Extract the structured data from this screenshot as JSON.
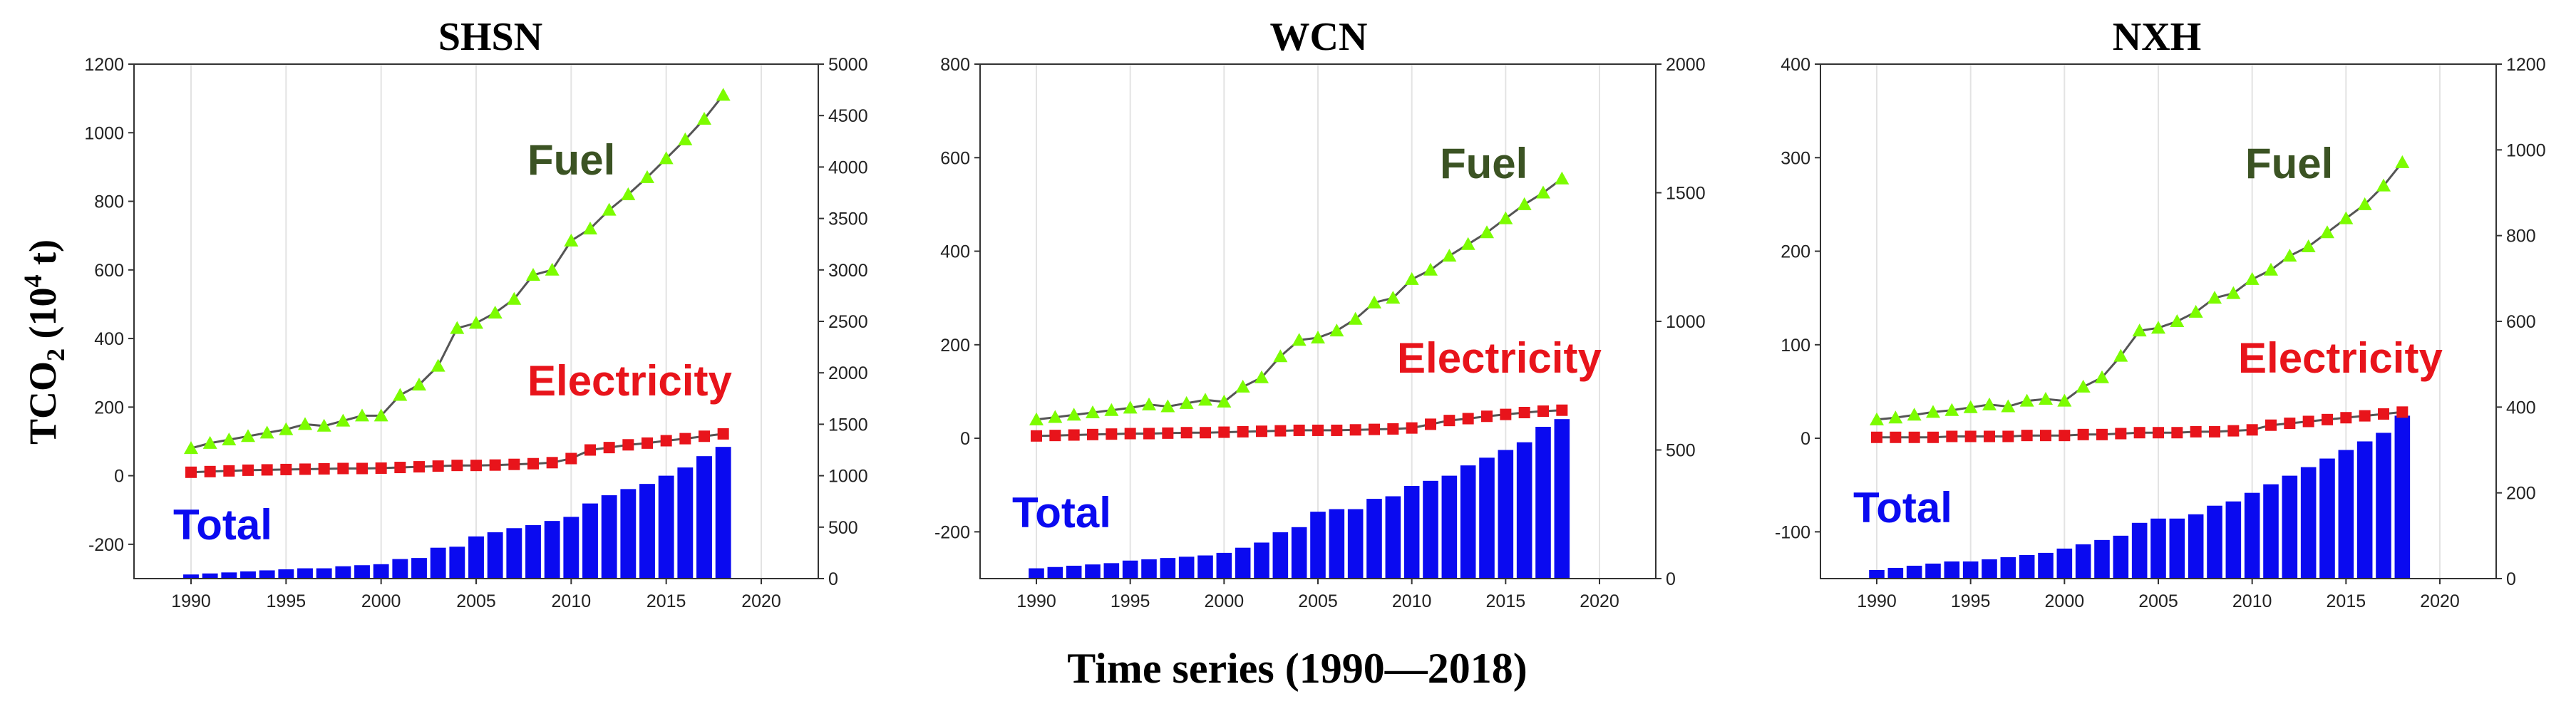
{
  "chart_data": [
    {
      "type": "bar+line",
      "title": "SHSN",
      "x": [
        1990,
        1991,
        1992,
        1993,
        1994,
        1995,
        1996,
        1997,
        1998,
        1999,
        2000,
        2001,
        2002,
        2003,
        2004,
        2005,
        2006,
        2007,
        2008,
        2009,
        2010,
        2011,
        2012,
        2013,
        2014,
        2015,
        2016,
        2017,
        2018
      ],
      "xlim": [
        1987,
        2023
      ],
      "xticks": [
        "1990",
        "1995",
        "2000",
        "2005",
        "2010",
        "2015",
        "2020"
      ],
      "ylim_left": [
        -300,
        1200
      ],
      "yticks_left": [
        "-200",
        "0",
        "200",
        "400",
        "600",
        "800",
        "1000",
        "1200"
      ],
      "ylim_right": [
        0,
        5000
      ],
      "yticks_right": [
        "0",
        "500",
        "1000",
        "1500",
        "2000",
        "2500",
        "3000",
        "3500",
        "4000",
        "4500",
        "5000"
      ],
      "series": [
        {
          "name": "Fuel",
          "axis": "left",
          "kind": "line",
          "marker": "triangle",
          "color": "#7CFC00",
          "values": [
            80,
            95,
            105,
            115,
            125,
            135,
            150,
            145,
            160,
            175,
            175,
            235,
            265,
            320,
            430,
            445,
            475,
            515,
            585,
            600,
            685,
            720,
            775,
            820,
            870,
            925,
            980,
            1040,
            1110
          ]
        },
        {
          "name": "Electricity",
          "axis": "left",
          "kind": "line",
          "marker": "square",
          "color": "#E8141B",
          "values": [
            10,
            12,
            14,
            16,
            17,
            18,
            19,
            20,
            21,
            21,
            22,
            24,
            26,
            28,
            30,
            30,
            31,
            33,
            35,
            38,
            50,
            75,
            82,
            90,
            95,
            102,
            108,
            115,
            122
          ]
        },
        {
          "name": "Total",
          "axis": "right",
          "kind": "bar",
          "color": "#0A0AF0",
          "values": [
            40,
            50,
            60,
            70,
            80,
            90,
            100,
            100,
            120,
            130,
            140,
            190,
            200,
            300,
            310,
            410,
            450,
            490,
            520,
            560,
            600,
            730,
            810,
            870,
            920,
            1000,
            1080,
            1190,
            1280
          ]
        }
      ]
    },
    {
      "type": "bar+line",
      "title": "WCN",
      "x": [
        1990,
        1991,
        1992,
        1993,
        1994,
        1995,
        1996,
        1997,
        1998,
        1999,
        2000,
        2001,
        2002,
        2003,
        2004,
        2005,
        2006,
        2007,
        2008,
        2009,
        2010,
        2011,
        2012,
        2013,
        2014,
        2015,
        2016,
        2017,
        2018
      ],
      "xlim": [
        1987,
        2023
      ],
      "xticks": [
        "1990",
        "1995",
        "2000",
        "2005",
        "2010",
        "2015",
        "2020"
      ],
      "ylim_left": [
        -300,
        800
      ],
      "yticks_left": [
        "-200",
        "0",
        "200",
        "400",
        "600",
        "800"
      ],
      "ylim_right": [
        0,
        2000
      ],
      "yticks_right": [
        "0",
        "500",
        "1000",
        "1500",
        "2000"
      ],
      "series": [
        {
          "name": "Fuel",
          "axis": "left",
          "kind": "line",
          "marker": "triangle",
          "color": "#7CFC00",
          "values": [
            40,
            45,
            50,
            55,
            60,
            65,
            72,
            68,
            75,
            82,
            78,
            110,
            130,
            175,
            210,
            215,
            230,
            255,
            290,
            300,
            340,
            360,
            390,
            415,
            440,
            470,
            500,
            525,
            555
          ]
        },
        {
          "name": "Electricity",
          "axis": "left",
          "kind": "line",
          "marker": "square",
          "color": "#E8141B",
          "values": [
            5,
            6,
            7,
            8,
            9,
            10,
            10,
            11,
            12,
            12,
            13,
            14,
            15,
            16,
            17,
            17,
            17,
            18,
            19,
            20,
            22,
            30,
            38,
            42,
            47,
            51,
            55,
            58,
            60
          ]
        },
        {
          "name": "Total",
          "axis": "right",
          "kind": "bar",
          "color": "#0A0AF0",
          "values": [
            40,
            45,
            50,
            55,
            60,
            70,
            75,
            80,
            85,
            90,
            100,
            120,
            140,
            180,
            200,
            260,
            270,
            270,
            310,
            320,
            360,
            380,
            400,
            440,
            470,
            500,
            530,
            590,
            620
          ]
        }
      ]
    },
    {
      "type": "bar+line",
      "title": "NXH",
      "x": [
        1990,
        1991,
        1992,
        1993,
        1994,
        1995,
        1996,
        1997,
        1998,
        1999,
        2000,
        2001,
        2002,
        2003,
        2004,
        2005,
        2006,
        2007,
        2008,
        2009,
        2010,
        2011,
        2012,
        2013,
        2014,
        2015,
        2016,
        2017,
        2018
      ],
      "xlim": [
        1987,
        2023
      ],
      "xticks": [
        "1990",
        "1995",
        "2000",
        "2005",
        "2010",
        "2015",
        "2020"
      ],
      "ylim_left": [
        -150,
        400
      ],
      "yticks_left": [
        "-100",
        "0",
        "100",
        "200",
        "300",
        "400"
      ],
      "ylim_right": [
        0,
        1200
      ],
      "yticks_right": [
        "0",
        "200",
        "400",
        "600",
        "800",
        "1000",
        "1200"
      ],
      "series": [
        {
          "name": "Fuel",
          "axis": "left",
          "kind": "line",
          "marker": "triangle",
          "color": "#7CFC00",
          "values": [
            20,
            22,
            25,
            28,
            30,
            33,
            36,
            34,
            40,
            42,
            40,
            55,
            65,
            88,
            115,
            118,
            125,
            135,
            150,
            155,
            170,
            180,
            195,
            205,
            220,
            235,
            250,
            270,
            295
          ]
        },
        {
          "name": "Electricity",
          "axis": "left",
          "kind": "line",
          "marker": "square",
          "color": "#E8141B",
          "values": [
            1,
            1,
            1,
            1,
            2,
            2,
            2,
            2,
            3,
            3,
            3,
            4,
            4,
            5,
            6,
            6,
            6,
            7,
            7,
            8,
            9,
            14,
            16,
            18,
            20,
            22,
            24,
            26,
            28
          ]
        },
        {
          "name": "Total",
          "axis": "right",
          "kind": "bar",
          "color": "#0A0AF0",
          "values": [
            20,
            25,
            30,
            35,
            40,
            40,
            45,
            50,
            55,
            60,
            70,
            80,
            90,
            100,
            130,
            140,
            140,
            150,
            170,
            180,
            200,
            220,
            240,
            260,
            280,
            300,
            320,
            340,
            380
          ]
        }
      ]
    }
  ],
  "shared": {
    "ylabel_main": "TCO",
    "ylabel_sub": "2",
    "ylabel_unit_open": " (10",
    "ylabel_exp": "4",
    "ylabel_unit_close": " t)",
    "xlabel": "Time series (1990—2018)"
  },
  "colors": {
    "fuel_label": "#3B5323",
    "electricity_label": "#E8141B",
    "total_label": "#0A0AF0",
    "line": "#555555",
    "grid": "#e3e3e3"
  }
}
